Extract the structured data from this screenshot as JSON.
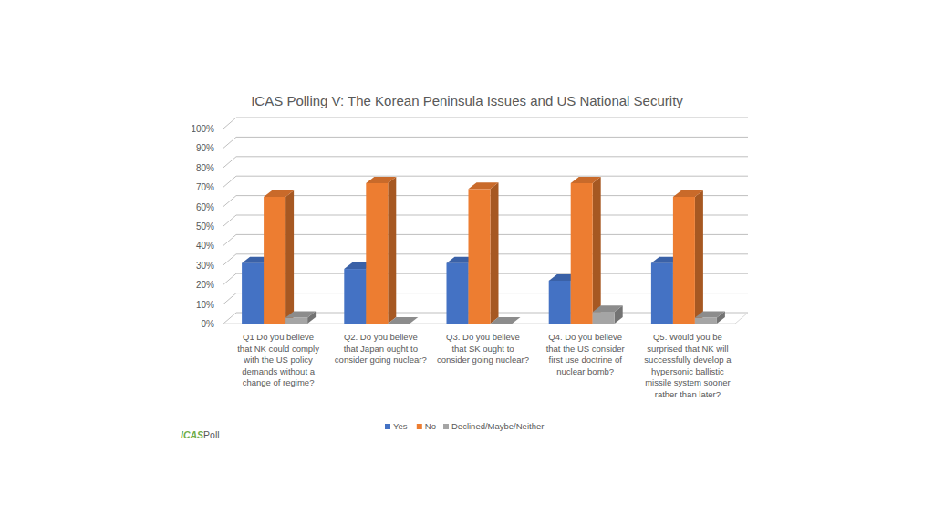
{
  "chart_data": {
    "type": "bar",
    "title": "ICAS Polling V: The Korean Peninsula Issues and US National Security",
    "categories": [
      "Q1      Do you believe that NK could comply with the US policy demands without a change of regime?",
      "Q2.      Do you believe that Japan ought to consider going nuclear?",
      "Q3.      Do you believe that SK ought to consider going nuclear?",
      "Q4.      Do you believe that the US consider first use doctrine of nuclear bomb?",
      "Q5.      Would you be surprised that NK will successfully develop a hypersonic ballistic missile system sooner rather than later?"
    ],
    "series": [
      {
        "name": "Yes",
        "color": "#4472c4",
        "values": [
          31,
          28,
          31,
          22,
          31
        ]
      },
      {
        "name": "No",
        "color": "#ed7d31",
        "values": [
          65,
          72,
          69,
          72,
          65
        ]
      },
      {
        "name": "Declined/Maybe/Neither",
        "color": "#a5a5a5",
        "values": [
          3,
          0,
          0,
          6,
          3
        ]
      }
    ],
    "ylim": [
      0,
      100
    ],
    "yticks": [
      {
        "value": 0,
        "label": "0%"
      },
      {
        "value": 10,
        "label": "10%"
      },
      {
        "value": 20,
        "label": "20%"
      },
      {
        "value": 30,
        "label": "30%"
      },
      {
        "value": 40,
        "label": "40%"
      },
      {
        "value": 50,
        "label": "50%"
      },
      {
        "value": 60,
        "label": "60%"
      },
      {
        "value": 70,
        "label": "70%"
      },
      {
        "value": 80,
        "label": "80%"
      },
      {
        "value": 90,
        "label": "90%"
      },
      {
        "value": 100,
        "label": "100%"
      }
    ],
    "grid": true,
    "legend": "bottom"
  },
  "logo": {
    "brand": "ICAS",
    "text": "Poll"
  }
}
